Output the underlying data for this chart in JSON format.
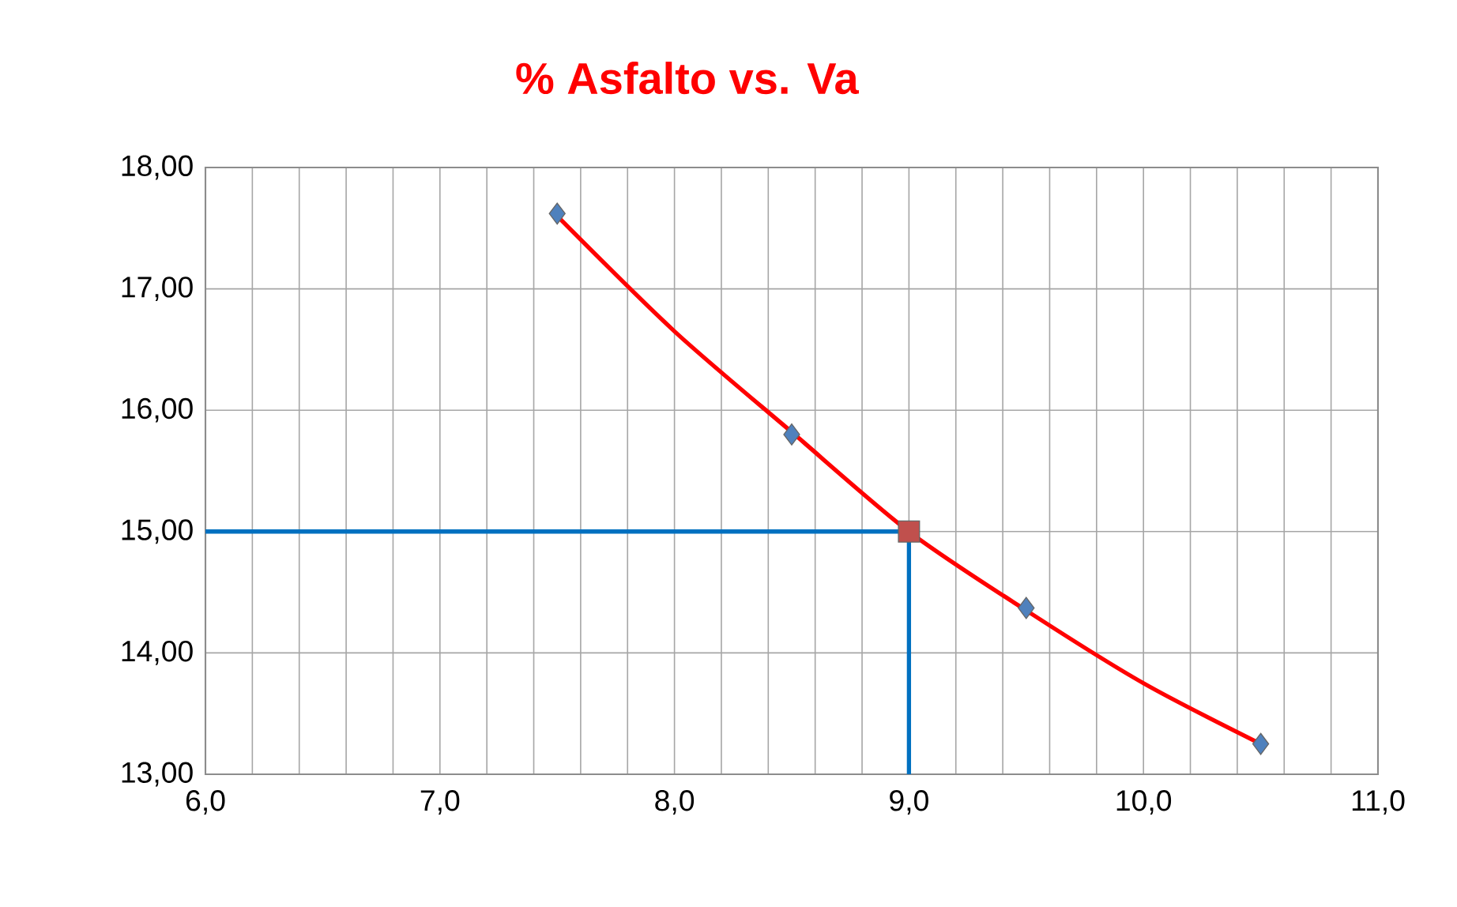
{
  "chart_data": {
    "type": "scatter",
    "title": "% Asfalto vs. Va",
    "xlim": [
      6,
      11
    ],
    "ylim": [
      13,
      18
    ],
    "xticks": [
      {
        "value": 6,
        "label": "6,0"
      },
      {
        "value": 7,
        "label": "7,0"
      },
      {
        "value": 8,
        "label": "8,0"
      },
      {
        "value": 9,
        "label": "9,0"
      },
      {
        "value": 10,
        "label": "10,0"
      },
      {
        "value": 11,
        "label": "11,0"
      }
    ],
    "yticks": [
      {
        "value": 13,
        "label": "13,00"
      },
      {
        "value": 14,
        "label": "14,00"
      },
      {
        "value": 15,
        "label": "15,00"
      },
      {
        "value": 16,
        "label": "16,00"
      },
      {
        "value": 17,
        "label": "17,00"
      },
      {
        "value": 18,
        "label": "18,00"
      }
    ],
    "grid": true,
    "series": [
      {
        "type": "line",
        "color": "#0070c0",
        "marker": "none",
        "x": [
          6,
          9,
          9
        ],
        "values": [
          15,
          15,
          13
        ]
      },
      {
        "type": "line",
        "color": "#ff0000",
        "marker": "none",
        "x": [
          7.5,
          8.0,
          8.5,
          9.0,
          9.5,
          10.0,
          10.5
        ],
        "values": [
          17.6,
          16.65,
          15.82,
          15.0,
          14.35,
          13.75,
          13.25
        ]
      },
      {
        "color": "#4f81bd",
        "marker": "diamond",
        "x": [
          7.5,
          8.5,
          9.5,
          10.5
        ],
        "values": [
          17.62,
          15.8,
          14.37,
          13.25
        ]
      },
      {
        "color": "#c0504d",
        "marker": "square",
        "x": [
          9
        ],
        "values": [
          15
        ]
      }
    ]
  }
}
